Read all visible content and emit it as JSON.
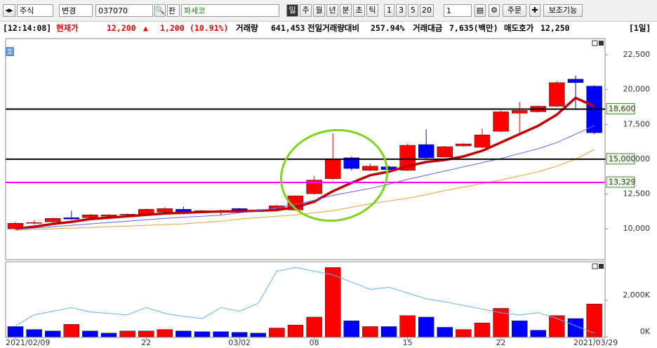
{
  "toolbar": {
    "market": "주식",
    "change": "변경",
    "code": "037070",
    "pan": "판",
    "name": "파세코",
    "periods": [
      "일",
      "주",
      "월",
      "년",
      "분",
      "초",
      "틱"
    ],
    "intervals": [
      "1",
      "3",
      "5",
      "20"
    ],
    "count": "1",
    "order": "주문",
    "aux": "보조기능"
  },
  "info": {
    "time": "[12:14:08]",
    "price_label": "현재가",
    "price": "12,200",
    "arrow": "▲",
    "change": "1,200",
    "rate": "(10.91%)",
    "volume_label": "거래량",
    "volume": "641,453",
    "prev_label": "전일거래량대비",
    "prev_ratio": "257.94%",
    "amount_label": "거래대금",
    "amount": "7,635(백만)",
    "ask_label": "매도호가",
    "ask": "12,250",
    "period": "[1일]"
  },
  "badge": "호",
  "chart_data": [
    {
      "type": "candlestick",
      "up_color": "#ff0000",
      "down_color": "#0000ff",
      "open": [
        10000,
        10400,
        10500,
        10800,
        10800,
        10900,
        11000,
        11050,
        11200,
        11400,
        11200,
        11200,
        11450,
        11300,
        11450,
        11350,
        12520,
        13600,
        15100,
        14200,
        14450,
        14200,
        16050,
        15150,
        15950,
        15850,
        17000,
        18300,
        18400,
        18800,
        20750,
        20250
      ],
      "high": [
        10500,
        10600,
        10800,
        11300,
        11050,
        11050,
        11100,
        11450,
        11550,
        11600,
        11350,
        11350,
        11500,
        11400,
        11700,
        12400,
        13800,
        16850,
        15200,
        14700,
        14550,
        16100,
        17150,
        15950,
        16150,
        17200,
        18500,
        19100,
        18850,
        20600,
        21000,
        20300
      ],
      "low": [
        9950,
        10300,
        10450,
        10650,
        10750,
        10850,
        10950,
        11000,
        11150,
        11050,
        11150,
        11000,
        11250,
        11250,
        11400,
        11300,
        12450,
        13500,
        14200,
        14150,
        14200,
        14150,
        15000,
        15100,
        15900,
        15800,
        16950,
        16900,
        18350,
        18750,
        18600,
        16800
      ],
      "close": [
        10400,
        10450,
        10750,
        10700,
        11000,
        11000,
        11050,
        11400,
        11450,
        11100,
        11300,
        11300,
        11300,
        11350,
        11650,
        12370,
        13500,
        14950,
        14330,
        14500,
        14250,
        16000,
        15100,
        15900,
        16100,
        16750,
        18400,
        18500,
        18800,
        20500,
        20500,
        16900
      ],
      "series": [
        {
          "color": "#c00000",
          "width": 3.5,
          "values": [
            10000,
            10150,
            10350,
            10500,
            10700,
            10800,
            10900,
            11000,
            11100,
            11150,
            11200,
            11250,
            11250,
            11300,
            11350,
            11550,
            11950,
            12700,
            13300,
            13850,
            14100,
            14500,
            14800,
            14950,
            15200,
            15600,
            16200,
            16800,
            17400,
            18200,
            19400,
            18800
          ]
        },
        {
          "color": "#6060ff",
          "width": 1,
          "values": [
            9950,
            10050,
            10150,
            10250,
            10350,
            10450,
            10550,
            10650,
            10750,
            10830,
            10900,
            10980,
            11150,
            11300,
            11500,
            11750,
            12050,
            12400,
            12650,
            12900,
            13200,
            13550,
            13850,
            14150,
            14450,
            14750,
            15050,
            15400,
            15750,
            16200,
            16800,
            17400
          ]
        },
        {
          "color": "#e8a030",
          "width": 1,
          "values": [
            9900,
            9950,
            10000,
            10050,
            10100,
            10150,
            10200,
            10250,
            10300,
            10350,
            10450,
            10550,
            10700,
            10800,
            10900,
            11000,
            11150,
            11300,
            11550,
            11800,
            12000,
            12200,
            12450,
            12750,
            13000,
            13250,
            13500,
            13800,
            14100,
            14500,
            15000,
            15700
          ]
        }
      ],
      "hlines": [
        {
          "value": 18600,
          "label": "18,600",
          "color": "#000000"
        },
        {
          "value": 15000,
          "label": "15,000",
          "color": "#000000"
        },
        {
          "value": 13329,
          "label": "13,329",
          "color": "#ff00ff"
        }
      ],
      "ylim": [
        7840,
        23610
      ],
      "yticks": [
        {
          "value": 10000,
          "label": "10,000"
        },
        {
          "value": 12500,
          "label": "12,500"
        },
        {
          "value": 15000,
          "label": "15,000"
        },
        {
          "value": 17500,
          "label": "17,500"
        },
        {
          "value": 20000,
          "label": "20,000"
        },
        {
          "value": 22500,
          "label": "22,500"
        }
      ]
    },
    {
      "type": "bar",
      "categories": [
        "2021/02/09",
        null,
        null,
        null,
        null,
        null,
        null,
        "22",
        null,
        null,
        null,
        null,
        "03/02",
        null,
        null,
        null,
        "08",
        null,
        null,
        null,
        null,
        "15",
        null,
        null,
        null,
        null,
        "22",
        null,
        null,
        null,
        null,
        "2021/03/29"
      ],
      "values": [
        560,
        400,
        320,
        680,
        320,
        200,
        320,
        320,
        400,
        320,
        280,
        280,
        240,
        200,
        480,
        640,
        1080,
        3800,
        880,
        560,
        560,
        1160,
        1080,
        520,
        400,
        760,
        1560,
        880,
        360,
        1160,
        1000,
        1800
      ],
      "colors": [
        "#0000ff",
        "#0000ff",
        "#0000ff",
        "#ff0000",
        "#0000ff",
        "#0000ff",
        "#ff0000",
        "#ff0000",
        "#ff0000",
        "#0000ff",
        "#0000ff",
        "#0000ff",
        "#0000ff",
        "#0000ff",
        "#ff0000",
        "#ff0000",
        "#ff0000",
        "#ff0000",
        "#0000ff",
        "#ff0000",
        "#0000ff",
        "#ff0000",
        "#0000ff",
        "#0000ff",
        "#ff0000",
        "#ff0000",
        "#ff0000",
        "#0000ff",
        "#0000ff",
        "#ff0000",
        "#0000ff",
        "#ff0000"
      ],
      "series": [
        {
          "color": "#60b0f0",
          "width": 1,
          "values": [
            600,
            1200,
            1400,
            1600,
            1360,
            1280,
            1200,
            1600,
            1280,
            1120,
            1000,
            1600,
            1400,
            1840,
            3600,
            3800,
            3600,
            3400,
            3000,
            2600,
            2720,
            2400,
            2080,
            1920,
            1720,
            1520,
            1320,
            1200,
            1320,
            1000,
            600,
            200
          ]
        }
      ],
      "ylim": [
        0,
        4080
      ],
      "yticks": [
        {
          "value": 0,
          "label": "0K"
        },
        {
          "value": 2000,
          "label": "2,000K"
        }
      ]
    }
  ]
}
